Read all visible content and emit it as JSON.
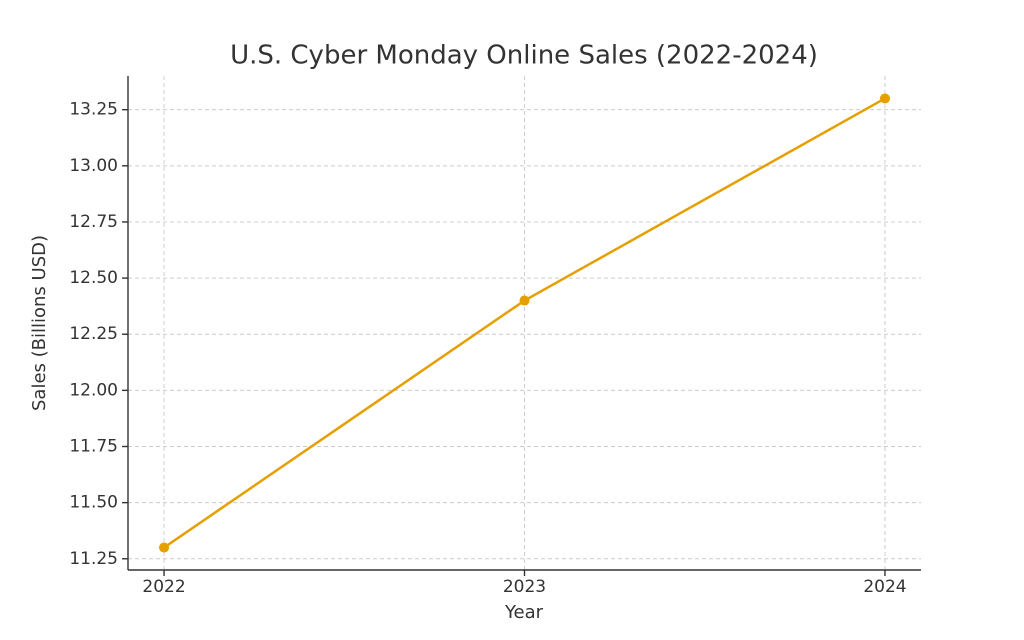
{
  "chart_data": {
    "type": "line",
    "title": "U.S. Cyber Monday Online Sales (2022-2024)",
    "x_label": "Year",
    "y_label": "Sales (Billions USD)",
    "x": [
      2022,
      2023,
      2024
    ],
    "values": [
      11.3,
      12.4,
      13.3
    ],
    "color": "#e69f00",
    "xlim": [
      2021.9,
      2024.1
    ],
    "xticks": [
      2022,
      2023,
      2024
    ],
    "ylim": [
      11.2,
      13.4
    ],
    "yticks": [
      11.25,
      {
        "value": 11.5,
        "label": "11.50"
      },
      11.75,
      {
        "value": 12,
        "label": "12.00"
      },
      12.25,
      {
        "value": 12.5,
        "label": "12.50"
      },
      12.75,
      {
        "value": 13,
        "label": "13.00"
      },
      13.25
    ],
    "grid": true
  }
}
